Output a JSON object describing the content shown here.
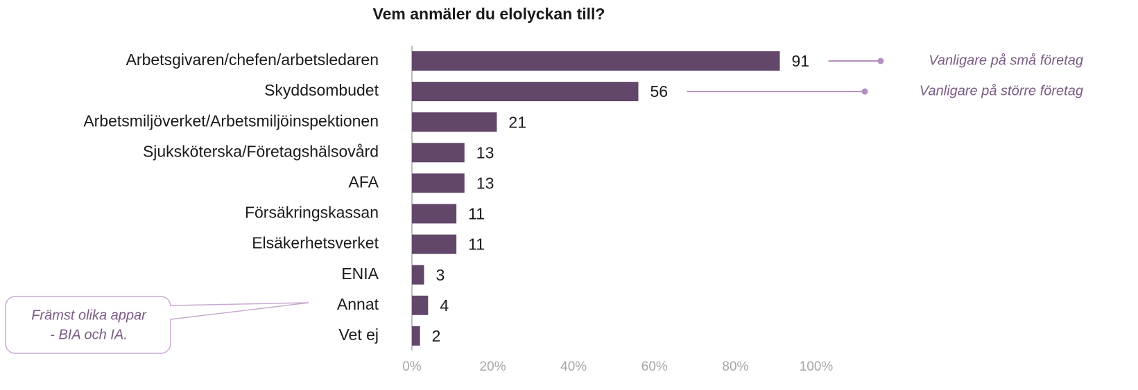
{
  "chart_data": {
    "type": "bar",
    "orientation": "horizontal",
    "title": "Vem anmäler du elolyckan till?",
    "categories": [
      "Arbetsgivaren/chefen/arbetsledaren",
      "Skyddsombudet",
      "Arbetsmiljöverket/Arbetsmiljöinspektionen",
      "Sjuksköterska/Företagshälsovård",
      "AFA",
      "Försäkringskassan",
      "Elsäkerhetsverket",
      "ENIA",
      "Annat",
      "Vet ej"
    ],
    "values": [
      91,
      56,
      21,
      13,
      13,
      11,
      11,
      3,
      4,
      2
    ],
    "color": "#62476a",
    "xlim": [
      0,
      100
    ],
    "xticks": [
      {
        "value": 0,
        "label": "0%"
      },
      {
        "value": 20,
        "label": "20%"
      },
      {
        "value": 40,
        "label": "40%"
      },
      {
        "value": 60,
        "label": "60%"
      },
      {
        "value": 80,
        "label": "80%"
      },
      {
        "value": 100,
        "label": "100%"
      }
    ],
    "grid": false,
    "annotations": [
      "Vanligare på små företag",
      "Vanligare på större företag"
    ],
    "callout": [
      "Främst olika appar",
      "-  BIA och IA."
    ]
  }
}
